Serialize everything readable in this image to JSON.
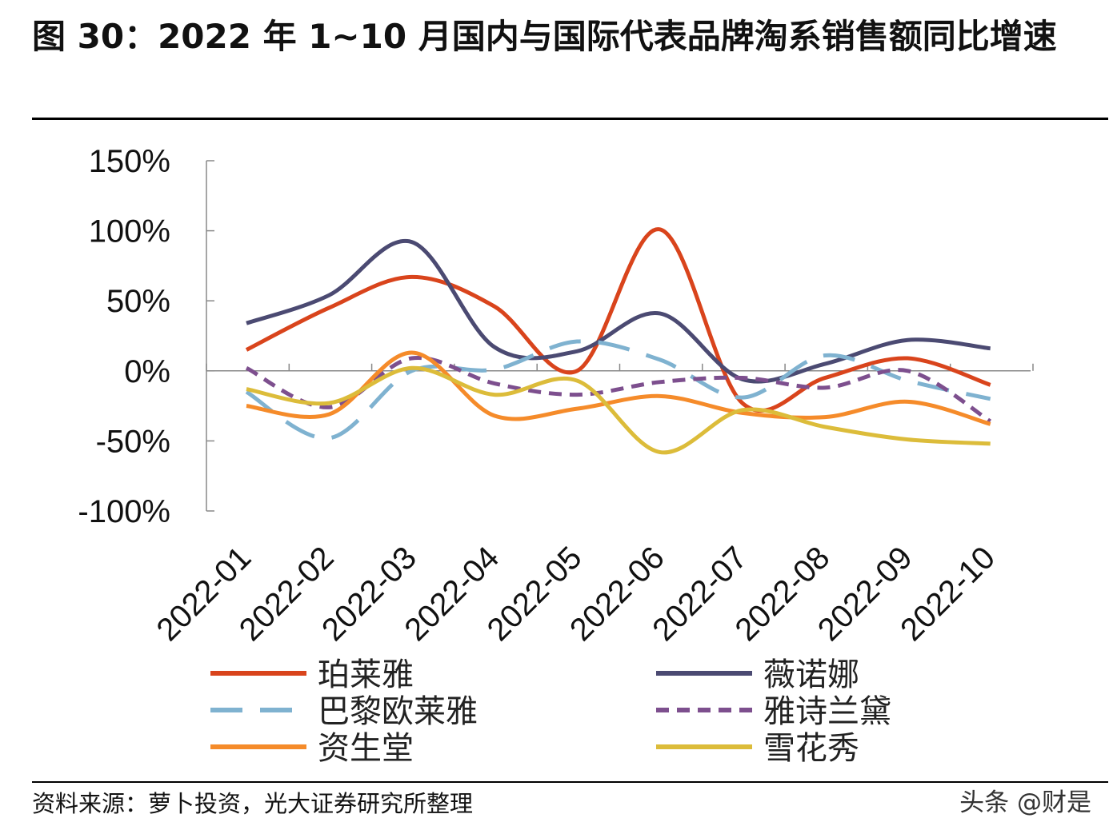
{
  "title": "图 30：2022 年 1~10 月国内与国际代表品牌淘系销售额同比增速",
  "footer": "资料来源：萝卜投资，光大证券研究所整理",
  "watermark": "头条 @财是",
  "chart_data": {
    "type": "line",
    "title": "",
    "xlabel": "",
    "ylabel": "",
    "ylim": [
      -100,
      150
    ],
    "yticks": [
      -100,
      -50,
      0,
      50,
      100,
      150
    ],
    "ytick_labels": [
      "-100%",
      "-50%",
      "0%",
      "50%",
      "100%",
      "150%"
    ],
    "grid": false,
    "legend_placement": "bottom",
    "categories": [
      "2022-01",
      "2022-02",
      "2022-03",
      "2022-04",
      "2022-05",
      "2022-06",
      "2022-07",
      "2022-08",
      "2022-09",
      "2022-10"
    ],
    "series": [
      {
        "name": "珀莱雅",
        "color": "#d9441c",
        "dash": "solid",
        "values": [
          15,
          45,
          67,
          46,
          0,
          101,
          -23,
          -5,
          9,
          -10
        ]
      },
      {
        "name": "薇诺娜",
        "color": "#4b4a72",
        "dash": "solid",
        "values": [
          34,
          54,
          92,
          17,
          14,
          41,
          -6,
          5,
          22,
          16
        ]
      },
      {
        "name": "巴黎欧莱雅",
        "color": "#7fb2d0",
        "dash": "dashed",
        "values": [
          -15,
          -48,
          0,
          1,
          21,
          8,
          -19,
          11,
          -7,
          -20
        ]
      },
      {
        "name": "雅诗兰黛",
        "color": "#7d4f8e",
        "dash": "dashed",
        "values": [
          2,
          -26,
          9,
          -9,
          -17,
          -8,
          -5,
          -12,
          0,
          -36
        ]
      },
      {
        "name": "资生堂",
        "color": "#f58b2a",
        "dash": "solid",
        "values": [
          -25,
          -31,
          13,
          -32,
          -27,
          -18,
          -30,
          -33,
          -22,
          -38
        ]
      },
      {
        "name": "雪花秀",
        "color": "#dcbc3a",
        "dash": "solid",
        "values": [
          -13,
          -23,
          2,
          -17,
          -7,
          -58,
          -28,
          -40,
          -49,
          -52
        ]
      }
    ]
  }
}
